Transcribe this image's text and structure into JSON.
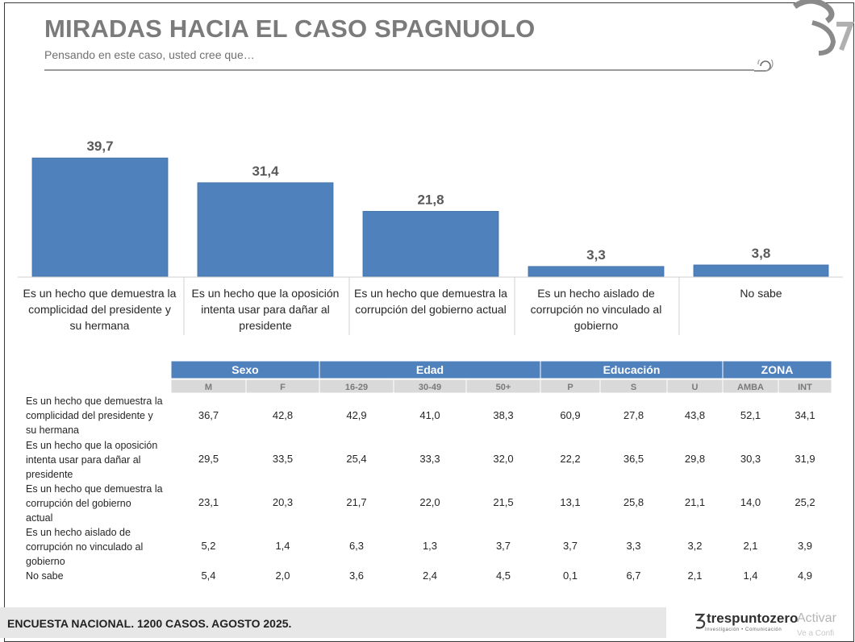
{
  "header": {
    "title": "MIRADAS HACIA EL CASO SPAGNUOLO",
    "subtitle": "Pensando en este caso, usted cree que…"
  },
  "chart_data": {
    "type": "bar",
    "categories": [
      [
        "Es un hecho que demuestra la",
        "complicidad del presidente y",
        "su hermana"
      ],
      [
        "Es un hecho que la oposición",
        "intenta usar para dañar al",
        "presidente"
      ],
      [
        "Es un hecho que demuestra la",
        "corrupción del gobierno actual"
      ],
      [
        "Es un hecho aislado de",
        "corrupción no vinculado al",
        "gobierno"
      ],
      [
        "No sabe"
      ]
    ],
    "values": [
      39.7,
      31.4,
      21.8,
      3.3,
      3.8
    ],
    "value_labels": [
      "39,7",
      "31,4",
      "21,8",
      "3,3",
      "3,8"
    ],
    "bar_color": "#4f81bd",
    "grid": false
  },
  "table": {
    "groups": [
      {
        "label": "Sexo",
        "span": 2
      },
      {
        "label": "Edad",
        "span": 3
      },
      {
        "label": "Educación",
        "span": 3
      },
      {
        "label": "ZONA",
        "span": 2
      }
    ],
    "subheaders": [
      "M",
      "F",
      "16-29",
      "30-49",
      "50+",
      "P",
      "S",
      "U",
      "AMBA",
      "INT"
    ],
    "rows": [
      {
        "label": [
          "Es un hecho que demuestra la",
          "complicidad del presidente y",
          "su hermana"
        ],
        "values": [
          "36,7",
          "42,8",
          "42,9",
          "41,0",
          "38,3",
          "60,9",
          "27,8",
          "43,8",
          "52,1",
          "34,1"
        ]
      },
      {
        "label": [
          "Es un hecho que la oposición",
          "intenta usar para dañar al",
          "presidente"
        ],
        "values": [
          "29,5",
          "33,5",
          "25,4",
          "33,3",
          "32,0",
          "22,2",
          "36,5",
          "29,8",
          "30,3",
          "31,9"
        ]
      },
      {
        "label": [
          "Es un hecho que demuestra la",
          "corrupción del gobierno",
          "actual"
        ],
        "values": [
          "23,1",
          "20,3",
          "21,7",
          "22,0",
          "21,5",
          "13,1",
          "25,8",
          "21,1",
          "14,0",
          "25,2"
        ]
      },
      {
        "label": [
          "Es un hecho aislado de",
          "corrupción no vinculado al",
          "gobierno"
        ],
        "values": [
          "5,2",
          "1,4",
          "6,3",
          "1,3",
          "3,7",
          "3,7",
          "3,3",
          "3,2",
          "2,1",
          "3,9"
        ]
      },
      {
        "label": [
          "No sabe"
        ],
        "values": [
          "5,4",
          "2,0",
          "3,6",
          "2,4",
          "4,5",
          "0,1",
          "6,7",
          "2,1",
          "1,4",
          "4,9"
        ]
      }
    ],
    "header_color": "#4f81bd",
    "subheader_color": "#d9d9d9"
  },
  "footer": {
    "text": "ENCUESTA NACIONAL. 1200 CASOS. AGOSTO 2025.",
    "brand": "trespuntozero",
    "brand_tagline": "Investigación • Comunicación",
    "overlay": "Activar",
    "overlay2": "Ve a Confi"
  }
}
